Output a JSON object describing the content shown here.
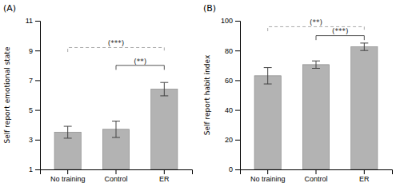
{
  "chart_data": [
    {
      "type": "bar",
      "title": "(A)",
      "categories": [
        "No training",
        "Control",
        "ER"
      ],
      "values": [
        3.5,
        3.7,
        6.4
      ],
      "errors": [
        0.4,
        0.55,
        0.45
      ],
      "ylabel": "Self report emotional state",
      "ylim": [
        1,
        11
      ],
      "yticks": [
        1,
        3,
        5,
        7,
        9,
        11
      ],
      "color": "#b3b3b3",
      "annotations": [
        {
          "text": "(***)",
          "from": "No training",
          "to": "ER",
          "y": 9.2,
          "line_style": "dashed",
          "color": "#aaaaaa"
        },
        {
          "text": "(**)",
          "from": "Control",
          "to": "ER",
          "y": 8.0,
          "line_style": "solid",
          "color": "#555555"
        }
      ]
    },
    {
      "type": "bar",
      "title": "(B)",
      "categories": [
        "No training",
        "Control",
        "ER"
      ],
      "values": [
        63.0,
        70.5,
        82.5
      ],
      "errors": [
        5.5,
        2.5,
        2.5
      ],
      "ylabel": "Self report habit index",
      "ylim": [
        0,
        100
      ],
      "yticks": [
        0,
        20,
        40,
        60,
        80,
        100
      ],
      "color": "#b3b3b3",
      "annotations": [
        {
          "text": "(**)",
          "from": "No training",
          "to": "ER",
          "y": 96,
          "line_style": "dashed",
          "color": "#aaaaaa"
        },
        {
          "text": "(***)",
          "from": "Control",
          "to": "ER",
          "y": 90,
          "line_style": "solid",
          "color": "#555555"
        }
      ]
    }
  ]
}
